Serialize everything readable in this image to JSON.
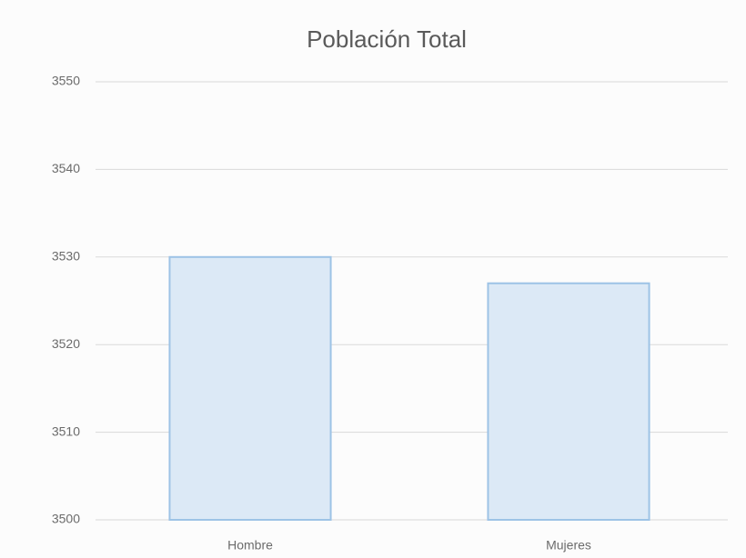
{
  "chart_data": {
    "type": "bar",
    "title": "Población Total",
    "categories": [
      "Hombre",
      "Mujeres"
    ],
    "values": [
      3530,
      3527
    ],
    "color": "#dce9f6",
    "edge_color": "#9dc3e6",
    "ylim": [
      3500,
      3550
    ],
    "yticks": [
      3500,
      3510,
      3520,
      3530,
      3540,
      3550
    ],
    "grid": true
  }
}
